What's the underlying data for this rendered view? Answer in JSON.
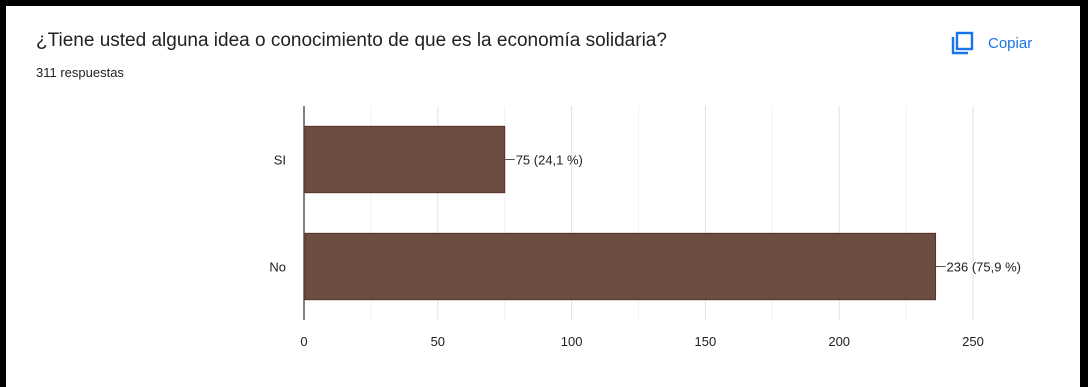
{
  "question": {
    "title": "¿Tiene usted alguna idea o conocimiento de que es la economía solidaria?",
    "responses": "311 respuestas",
    "copy_label": "Copiar",
    "copy_icon": "copy-icon"
  },
  "colors": {
    "bar": "#6d4c41",
    "accent": "#1a73e8",
    "grid": "#e6e6e6",
    "axis": "#555555",
    "text": "#202124"
  },
  "chart_data": {
    "type": "bar",
    "orientation": "horizontal",
    "title": "¿Tiene usted alguna idea o conocimiento de que es la economía solidaria?",
    "categories": [
      "SI",
      "No"
    ],
    "values": [
      75,
      236
    ],
    "data_labels": [
      "75 (24,1 %)",
      "236 (75,9 %)"
    ],
    "xlim": [
      0,
      250
    ],
    "xticks": [
      0,
      50,
      100,
      150,
      200,
      250
    ],
    "grid": true,
    "legend": "none"
  }
}
